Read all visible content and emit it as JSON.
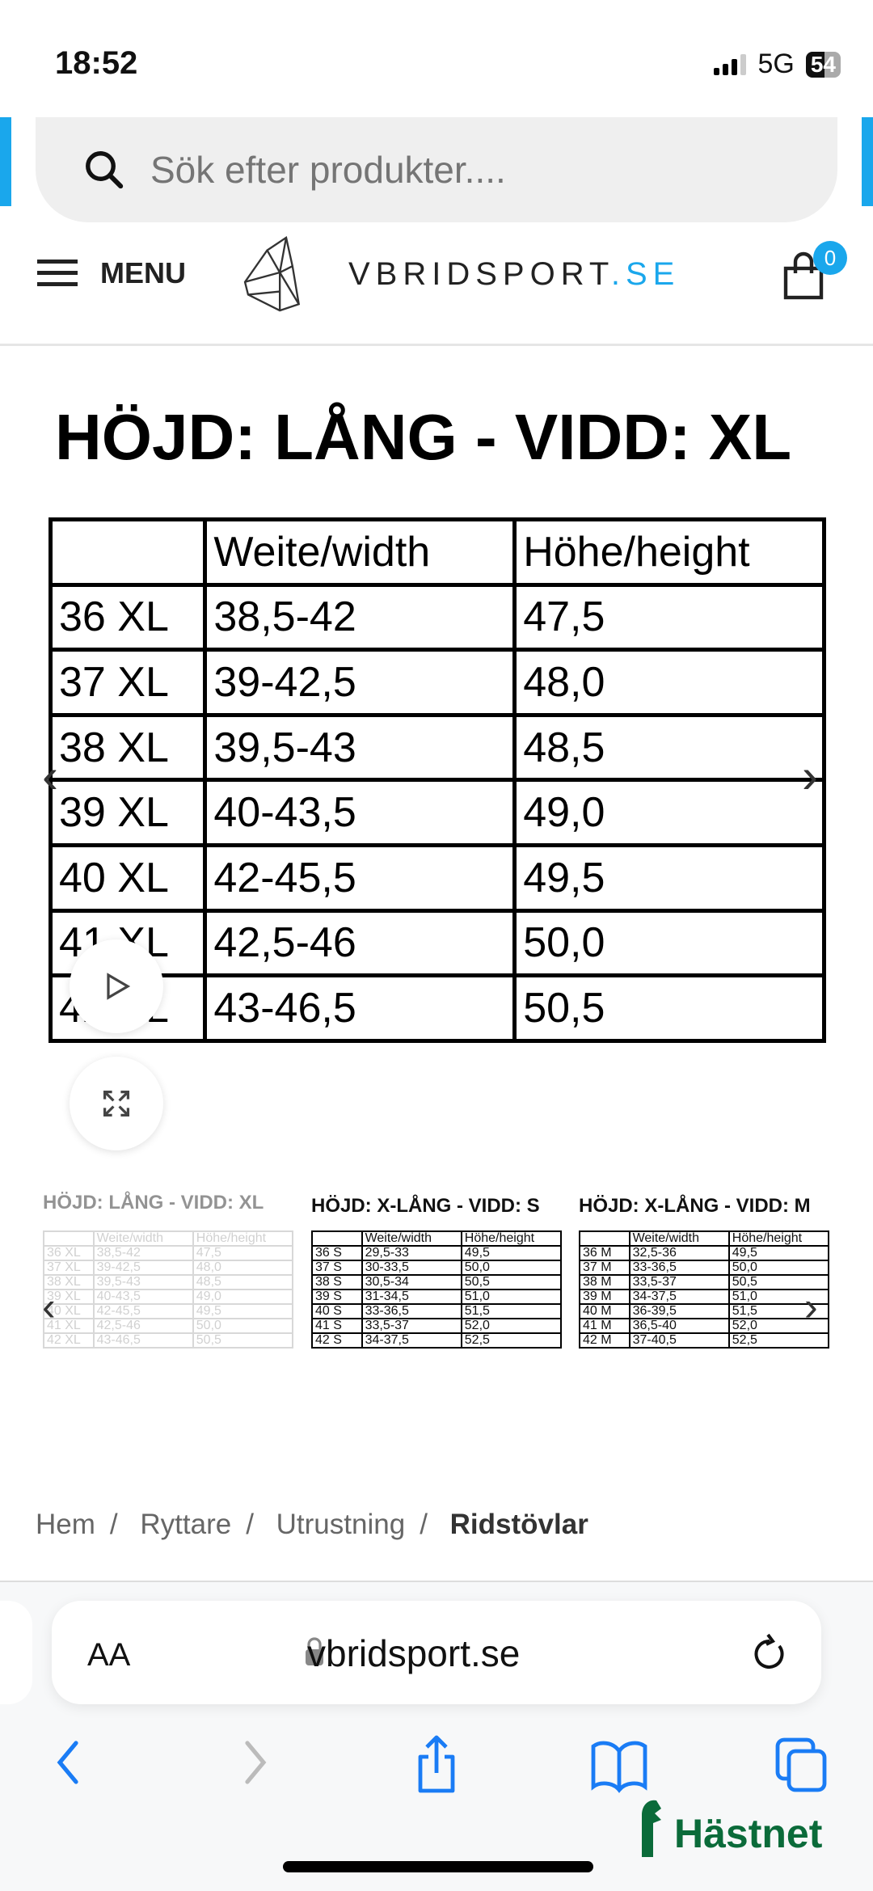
{
  "status": {
    "time": "18:52",
    "network": "5G",
    "battery": "54"
  },
  "search": {
    "placeholder": "Sök efter produkter...."
  },
  "header": {
    "menu_label": "MENU",
    "logo_main": "VBRIDSPORT",
    "logo_tld": ".SE",
    "cart_count": "0",
    "accent": "#1aa7ec"
  },
  "gallery": {
    "main": {
      "title": "HÖJD: LÅNG - VIDD: XL",
      "headers": [
        "",
        "Weite/width",
        "Höhe/height"
      ],
      "rows": [
        [
          "36 XL",
          "38,5-42",
          "47,5"
        ],
        [
          "37 XL",
          "39-42,5",
          "48,0"
        ],
        [
          "38 XL",
          "39,5-43",
          "48,5"
        ],
        [
          "39 XL",
          "40-43,5",
          "49,0"
        ],
        [
          "40 XL",
          "42-45,5",
          "49,5"
        ],
        [
          "41 XL",
          "42,5-46",
          "50,0"
        ],
        [
          "42 XL",
          "43-46,5",
          "50,5"
        ]
      ]
    },
    "thumbnails": [
      {
        "title": "HÖJD: LÅNG - VIDD: XL",
        "selected": true,
        "headers": [
          "",
          "Weite/width",
          "Höhe/height"
        ],
        "rows": [
          [
            "36 XL",
            "38,5-42",
            "47,5"
          ],
          [
            "37 XL",
            "39-42,5",
            "48,0"
          ],
          [
            "38 XL",
            "39,5-43",
            "48,5"
          ],
          [
            "39 XL",
            "40-43,5",
            "49,0"
          ],
          [
            "40 XL",
            "42-45,5",
            "49,5"
          ],
          [
            "41 XL",
            "42,5-46",
            "50,0"
          ],
          [
            "42 XL",
            "43-46,5",
            "50,5"
          ]
        ]
      },
      {
        "title": "HÖJD: X-LÅNG - VIDD: S",
        "headers": [
          "",
          "Weite/width",
          "Höhe/height"
        ],
        "rows": [
          [
            "36 S",
            "29,5-33",
            "49,5"
          ],
          [
            "37 S",
            "30-33,5",
            "50,0"
          ],
          [
            "38 S",
            "30,5-34",
            "50,5"
          ],
          [
            "39 S",
            "31-34,5",
            "51,0"
          ],
          [
            "40 S",
            "33-36,5",
            "51,5"
          ],
          [
            "41 S",
            "33,5-37",
            "52,0"
          ],
          [
            "42 S",
            "34-37,5",
            "52,5"
          ]
        ]
      },
      {
        "title": "HÖJD: X-LÅNG - VIDD: M",
        "headers": [
          "",
          "Weite/width",
          "Höhe/height"
        ],
        "rows": [
          [
            "36 M",
            "32,5-36",
            "49,5"
          ],
          [
            "37 M",
            "33-36,5",
            "50,0"
          ],
          [
            "38 M",
            "33,5-37",
            "50,5"
          ],
          [
            "39 M",
            "34-37,5",
            "51,0"
          ],
          [
            "40 M",
            "36-39,5",
            "51,5"
          ],
          [
            "41 M",
            "36,5-40",
            "52,0"
          ],
          [
            "42 M",
            "37-40,5",
            "52,5"
          ]
        ]
      }
    ]
  },
  "breadcrumb": [
    "Hem",
    "Ryttare",
    "Utrustning",
    "Ridstövlar"
  ],
  "browser": {
    "aa_label": "AA",
    "url": "vbridsport.se",
    "accent": "#1a7cf5"
  },
  "watermark": {
    "text": "Hästnet"
  }
}
